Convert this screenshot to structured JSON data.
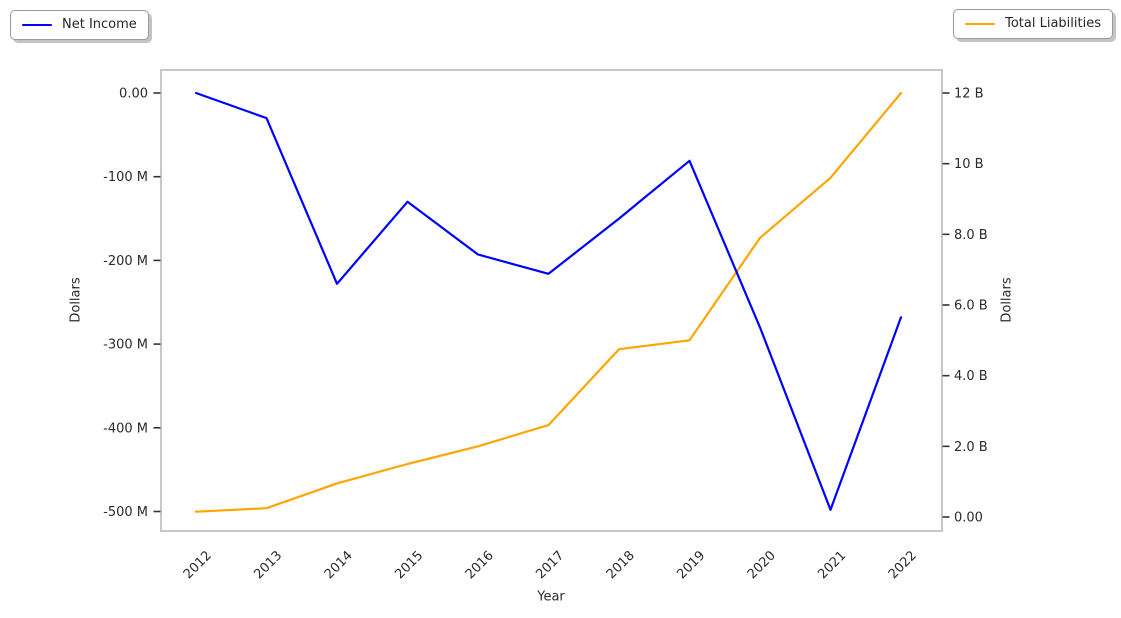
{
  "legends": {
    "net_income": {
      "label": "Net Income",
      "color": "#0000ff"
    },
    "total_liabilities": {
      "label": "Total Liabilities",
      "color": "#ffa500"
    }
  },
  "axes": {
    "x_label": "Year",
    "left_y_label": "Dollars",
    "right_y_label": "Dollars",
    "left_tick_labels": [
      "0.00",
      "-100 M",
      "-200 M",
      "-300 M",
      "-400 M",
      "-500 M"
    ],
    "left_tick_values_M": [
      0,
      -100,
      -200,
      -300,
      -400,
      -500
    ],
    "right_tick_labels": [
      "12 B",
      "10 B",
      "8.0 B",
      "6.0 B",
      "4.0 B",
      "2.0 B",
      "0.00"
    ],
    "right_tick_values_B": [
      12,
      10,
      8,
      6,
      4,
      2,
      0
    ],
    "x_tick_labels": [
      "2012",
      "2013",
      "2014",
      "2015",
      "2016",
      "2017",
      "2018",
      "2019",
      "2020",
      "2021",
      "2022"
    ]
  },
  "chart_data": {
    "type": "line",
    "title": "",
    "xlabel": "Year",
    "ylabel_left": "Dollars",
    "ylabel_right": "Dollars",
    "x": [
      2012,
      2013,
      2014,
      2015,
      2016,
      2017,
      2018,
      2019,
      2020,
      2021,
      2022
    ],
    "series": [
      {
        "name": "Net Income",
        "axis": "left",
        "unit": "million USD",
        "color": "#0000ff",
        "values": [
          0,
          -30,
          -228,
          -130,
          -193,
          -216,
          -150,
          -81,
          -280,
          -498,
          -268
        ]
      },
      {
        "name": "Total Liabilities",
        "axis": "right",
        "unit": "billion USD",
        "color": "#ffa500",
        "values": [
          0.15,
          0.25,
          0.95,
          1.5,
          2.0,
          2.6,
          4.75,
          5.0,
          7.9,
          9.6,
          12.0
        ]
      }
    ],
    "left_ylim_M": [
      -525,
      27
    ],
    "right_ylim_B": [
      -0.4,
      12.65
    ],
    "grid": false,
    "legend_position": "Net Income outside top-left; Total Liabilities outside top-right"
  }
}
